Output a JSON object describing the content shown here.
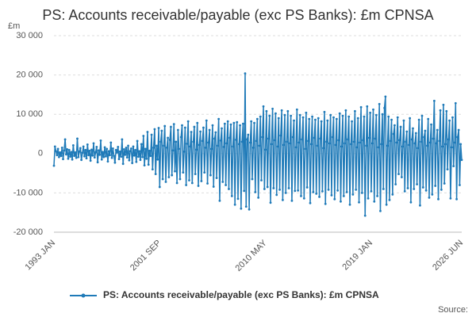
{
  "chart_data": {
    "type": "line",
    "title": "PS: Accounts receivable/payable (exc PS Banks): £m CPNSA",
    "y_label": "£m",
    "source": "Source:",
    "categories": [
      "1993 JAN",
      null,
      null,
      null,
      null,
      null,
      null,
      null,
      null,
      null,
      null,
      null,
      null,
      null,
      null,
      null,
      null,
      null,
      null,
      null,
      null,
      null,
      null,
      null,
      null,
      null,
      null,
      null,
      null,
      null,
      null,
      null,
      null,
      null,
      null,
      null,
      null,
      null,
      null,
      null,
      null,
      null,
      null,
      null,
      null,
      null,
      null,
      null,
      null,
      null,
      null,
      null,
      null,
      null,
      null,
      null,
      null,
      null,
      null,
      null,
      null,
      null,
      null,
      null,
      null,
      null,
      null,
      null,
      null,
      null,
      null,
      null,
      null,
      null,
      null,
      null,
      null,
      null,
      null,
      null,
      null,
      null,
      null,
      null,
      null,
      null,
      null,
      null,
      null,
      null,
      null,
      null,
      null,
      null,
      null,
      null,
      null,
      null,
      null,
      null,
      null,
      null,
      null,
      null,
      "2001 SEP",
      null,
      null,
      null,
      null,
      null,
      null,
      null,
      null,
      null,
      null,
      null,
      null,
      null,
      null,
      null,
      null,
      null,
      null,
      null,
      null,
      null,
      null,
      null,
      null,
      null,
      null,
      null,
      null,
      null,
      null,
      null,
      null,
      null,
      null,
      null,
      null,
      null,
      null,
      null,
      null,
      null,
      null,
      null,
      null,
      null,
      null,
      null,
      null,
      null,
      null,
      null,
      null,
      null,
      null,
      null,
      null,
      null,
      null,
      null,
      null,
      null,
      null,
      null,
      null,
      null,
      null,
      null,
      null,
      null,
      null,
      null,
      null,
      null,
      null,
      null,
      null,
      null,
      null,
      null,
      null,
      null,
      null,
      null,
      null,
      null,
      null,
      null,
      null,
      null,
      null,
      null,
      null,
      null,
      null,
      null,
      null,
      null,
      null,
      null,
      null,
      null,
      null,
      null,
      "2010 MAY",
      null,
      null,
      null,
      null,
      null,
      null,
      null,
      null,
      null,
      null,
      null,
      null,
      null,
      null,
      null,
      null,
      null,
      null,
      null,
      null,
      null,
      null,
      null,
      null,
      null,
      null,
      null,
      null,
      null,
      null,
      null,
      null,
      null,
      null,
      null,
      null,
      null,
      null,
      null,
      null,
      null,
      null,
      null,
      null,
      null,
      null,
      null,
      null,
      null,
      null,
      null,
      null,
      null,
      null,
      null,
      null,
      null,
      null,
      null,
      null,
      null,
      null,
      null,
      null,
      null,
      null,
      null,
      null,
      null,
      null,
      null,
      null,
      null,
      null,
      null,
      null,
      null,
      null,
      null,
      null,
      null,
      null,
      null,
      null,
      null,
      null,
      null,
      null,
      null,
      null,
      null,
      null,
      null,
      null,
      null,
      null,
      null,
      null,
      null,
      null,
      null,
      null,
      null,
      "2019 JAN",
      null,
      null,
      null,
      null,
      null,
      null,
      null,
      null,
      null,
      null,
      null,
      null,
      null,
      null,
      null,
      null,
      null,
      null,
      null,
      null,
      null,
      null,
      null,
      null,
      null,
      null,
      null,
      null,
      null,
      null,
      null,
      null,
      null,
      null,
      null,
      null,
      null,
      null,
      null,
      null,
      null,
      null,
      null,
      null,
      null,
      null,
      null,
      null,
      null,
      null,
      null,
      null,
      null,
      null,
      null,
      null,
      null,
      null,
      null,
      null,
      null,
      null,
      null,
      null,
      null,
      null,
      null,
      null,
      null,
      null,
      null,
      null,
      null,
      null,
      null,
      null,
      null,
      null,
      null,
      null,
      null,
      null,
      null,
      null,
      null,
      null,
      null,
      null,
      "2026 JUN"
    ],
    "series": [
      {
        "name": "PS: Accounts receivable/payable (exc PS Banks): £m CPNSA",
        "color": "#1f7ab8",
        "values": [
          -3100,
          1800,
          600,
          -400,
          1200,
          -900,
          300,
          -600,
          1500,
          -1400,
          800,
          3600,
          -200,
          1100,
          -1300,
          900,
          -800,
          400,
          -1500,
          2100,
          -600,
          300,
          -1100,
          3800,
          -900,
          500,
          1400,
          -1600,
          200,
          1800,
          -700,
          900,
          -1200,
          2300,
          -400,
          700,
          -1800,
          1000,
          -500,
          2600,
          -1000,
          300,
          1700,
          -2200,
          800,
          -300,
          3300,
          -1500,
          400,
          -900,
          1600,
          -700,
          1200,
          -2000,
          600,
          -400,
          2800,
          -1100,
          1300,
          -600,
          -2300,
          900,
          300,
          1700,
          -1400,
          500,
          -800,
          3600,
          -2600,
          1100,
          -300,
          1500,
          -1000,
          2000,
          -1700,
          600,
          1300,
          -2400,
          1800,
          -500,
          900,
          -2100,
          3200,
          -800,
          600,
          -1600,
          2400,
          -900,
          4500,
          -3000,
          1200,
          -1300,
          5500,
          -2800,
          700,
          -600,
          4800,
          -4000,
          1500,
          6200,
          -5200,
          2000,
          -1500,
          6500,
          -8500,
          3000,
          5800,
          -6500,
          2000,
          7000,
          -7200,
          1500,
          4000,
          -6000,
          3500,
          6800,
          -5500,
          800,
          7500,
          -4500,
          3000,
          -7500,
          6000,
          1200,
          -6500,
          4200,
          7200,
          -4800,
          500,
          6600,
          -8000,
          2500,
          8200,
          -6800,
          1800,
          5500,
          -7500,
          3000,
          6800,
          -5200,
          1000,
          7800,
          -8200,
          2200,
          5600,
          -7000,
          3200,
          6600,
          -4800,
          1500,
          8400,
          -7600,
          2800,
          6000,
          -5500,
          1200,
          7200,
          -8400,
          3800,
          5400,
          -6200,
          2000,
          8800,
          -12000,
          3300,
          6400,
          -7200,
          1700,
          7600,
          -8000,
          2600,
          8200,
          -9000,
          4000,
          7400,
          -10800,
          1800,
          7800,
          -13000,
          3500,
          8000,
          -11500,
          2400,
          7200,
          -14000,
          3000,
          7600,
          -9500,
          20400,
          -13500,
          3600,
          4800,
          -14200,
          2800,
          8200,
          -6500,
          1500,
          7800,
          -9800,
          3200,
          8800,
          -11200,
          2000,
          9400,
          -6800,
          4200,
          12000,
          -9000,
          1000,
          10800,
          -8500,
          3800,
          9600,
          -12500,
          2400,
          11400,
          -8800,
          3400,
          10200,
          -10500,
          1800,
          9000,
          -9200,
          4600,
          11000,
          -11800,
          2200,
          9800,
          -10000,
          3000,
          10800,
          -8800,
          2600,
          9600,
          -12000,
          4200,
          8400,
          -9500,
          1600,
          11200,
          -9400,
          2800,
          9800,
          -10800,
          3600,
          9200,
          -11400,
          1200,
          10400,
          -8600,
          3200,
          8800,
          -12600,
          2400,
          9400,
          -9800,
          4000,
          8600,
          -10200,
          2000,
          9000,
          -11000,
          3800,
          8200,
          -9600,
          1400,
          10600,
          -12800,
          3000,
          8400,
          -9200,
          2600,
          9800,
          -10600,
          4200,
          9200,
          -11600,
          2200,
          8800,
          -9400,
          3400,
          10200,
          -12200,
          1800,
          9600,
          -10800,
          2600,
          11000,
          -9800,
          3600,
          9400,
          -13000,
          2400,
          8200,
          -10400,
          3000,
          10800,
          -9200,
          1600,
          9000,
          -12400,
          2800,
          11800,
          -10000,
          3400,
          9400,
          -15800,
          2000,
          12000,
          -11400,
          4000,
          10400,
          -9600,
          2600,
          11200,
          -12200,
          3800,
          9800,
          -10800,
          1600,
          12600,
          -14600,
          2400,
          10000,
          -9000,
          11600,
          14500,
          -13000,
          2000,
          9400,
          -11800,
          3200,
          8600,
          -10400,
          5000,
          7200,
          -7800,
          2800,
          9200,
          -5200,
          3400,
          6800,
          -6000,
          1800,
          8400,
          -9600,
          3000,
          5600,
          -8800,
          2200,
          9000,
          -12400,
          3600,
          6400,
          -9000,
          2600,
          5200,
          -7800,
          1400,
          8600,
          -13200,
          3000,
          9600,
          -8600,
          4200,
          5800,
          -9400,
          2000,
          8800,
          -11200,
          2800,
          7400,
          -10400,
          3800,
          13400,
          -8200,
          2600,
          6000,
          -11600,
          3200,
          11000,
          -9200,
          1800,
          12400,
          -7600,
          2400,
          10800,
          -4000,
          3600,
          8400,
          -11400,
          1600,
          9200,
          -3200,
          2800,
          12800,
          -11600,
          4200,
          6000,
          -8000,
          2400,
          -1600
        ]
      }
    ],
    "ylim": [
      -20000,
      30000
    ],
    "yticks": [
      {
        "value": -20000,
        "label": "-20 000"
      },
      {
        "value": -10000,
        "label": "-10 000"
      },
      0,
      {
        "value": 10000,
        "label": "10 000"
      },
      {
        "value": 20000,
        "label": "20 000"
      },
      {
        "value": 30000,
        "label": "30 000"
      }
    ],
    "grid": true,
    "legend": "bottom"
  }
}
